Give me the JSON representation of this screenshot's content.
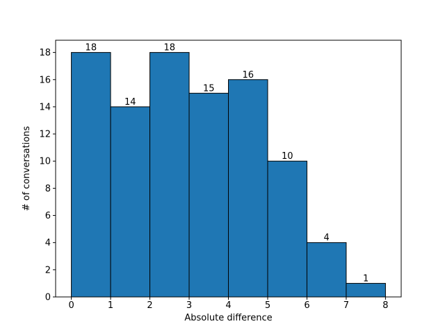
{
  "figure": {
    "background": "#ffffff"
  },
  "chart_data": {
    "type": "bar",
    "subtype": "histogram",
    "title": "",
    "xlabel": "Absolute difference",
    "ylabel": "# of conversations",
    "bin_edges": [
      0,
      1,
      2,
      3,
      4,
      5,
      6,
      7,
      8
    ],
    "categories": [
      "0-1",
      "1-2",
      "2-3",
      "3-4",
      "4-5",
      "5-6",
      "6-7",
      "7-8"
    ],
    "values": [
      18,
      14,
      18,
      15,
      16,
      10,
      4,
      1
    ],
    "bar_labels": [
      "18",
      "14",
      "18",
      "15",
      "16",
      "10",
      "4",
      "1"
    ],
    "x_ticks": [
      0,
      1,
      2,
      3,
      4,
      5,
      6,
      7,
      8
    ],
    "x_tick_labels": [
      "0",
      "1",
      "2",
      "3",
      "4",
      "5",
      "6",
      "7",
      "8"
    ],
    "y_ticks": [
      0,
      2,
      4,
      6,
      8,
      10,
      12,
      14,
      16,
      18
    ],
    "y_tick_labels": [
      "0",
      "2",
      "4",
      "6",
      "8",
      "10",
      "12",
      "14",
      "16",
      "18"
    ],
    "xlim": [
      -0.4,
      8.4
    ],
    "ylim": [
      0,
      18.9
    ],
    "bar_color": "#1f77b4",
    "bar_edge_color": "#000000",
    "axis_color": "#000000",
    "grid": false,
    "legend": null
  }
}
